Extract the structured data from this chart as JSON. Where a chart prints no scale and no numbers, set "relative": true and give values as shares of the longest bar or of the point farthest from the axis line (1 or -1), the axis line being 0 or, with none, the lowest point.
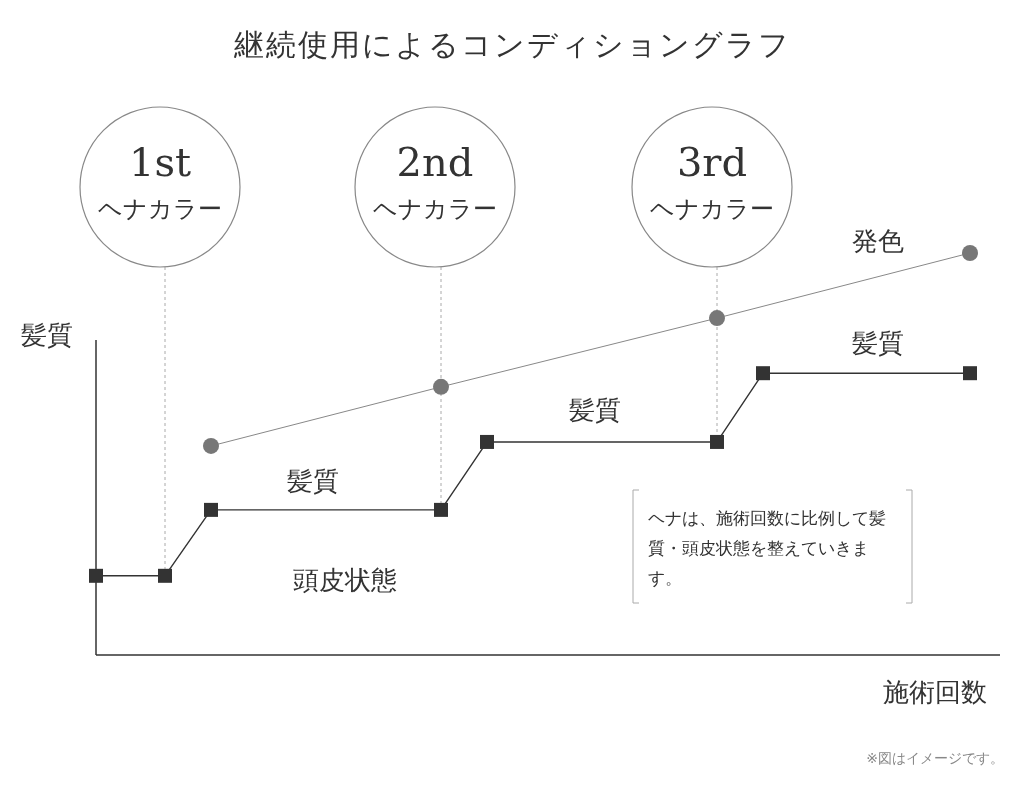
{
  "chart_data": {
    "type": "line",
    "relative": true,
    "title": "継続使用によるコンディショングラフ",
    "xlabel": "施術回数",
    "ylabel": "髪質",
    "categories": [
      null,
      null,
      null,
      null,
      null,
      null,
      null,
      null,
      null,
      null,
      null,
      null,
      null,
      null,
      null,
      null,
      null,
      null,
      null,
      null,
      null,
      null,
      null,
      null,
      null,
      null,
      null,
      null,
      null,
      null,
      null,
      null,
      null,
      null,
      null,
      null,
      null,
      null,
      null
    ],
    "series": [
      {
        "name": "発色",
        "color": "#888888",
        "marker": "circle",
        "values": [
          null,
          null,
          null,
          null,
          null,
          0.52,
          null,
          null,
          null,
          null,
          null,
          null,
          null,
          null,
          null,
          0.667,
          null,
          null,
          null,
          null,
          null,
          null,
          null,
          null,
          null,
          null,
          null,
          0.838,
          null,
          null,
          null,
          null,
          null,
          null,
          null,
          null,
          null,
          null,
          1.0
        ]
      },
      {
        "name": "髪質",
        "color": "#333333",
        "marker": "square",
        "values": [
          0.197,
          null,
          null,
          0.197,
          null,
          0.361,
          null,
          null,
          null,
          null,
          null,
          null,
          null,
          null,
          null,
          0.361,
          null,
          0.53,
          null,
          null,
          null,
          null,
          null,
          null,
          null,
          null,
          null,
          0.53,
          null,
          0.701,
          null,
          null,
          null,
          null,
          null,
          null,
          null,
          null,
          0.701
        ]
      }
    ],
    "annotations": [
      "1st ヘナカラー",
      "2nd ヘナカラー",
      "3rd ヘナカラー",
      "髪質",
      "髪質",
      "頭皮状態",
      "ヘナは、施術回数に比例して髪質・頭皮状態を整えていきます。",
      "※図はイメージです。"
    ]
  }
}
